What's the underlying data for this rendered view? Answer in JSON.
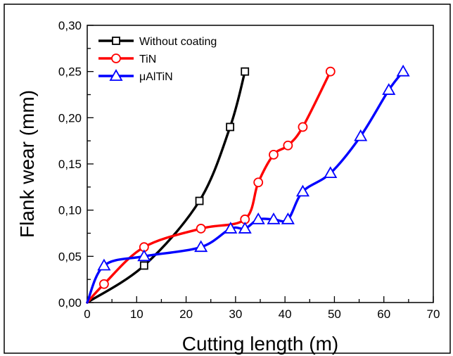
{
  "chart_data": {
    "type": "line",
    "title": "",
    "xlabel": "Cutting length (m)",
    "ylabel": "Flank wear (mm)",
    "xlim": [
      0,
      70
    ],
    "ylim": [
      0.0,
      0.3
    ],
    "x_ticks": [
      "0",
      "10",
      "20",
      "30",
      "40",
      "50",
      "60",
      "70"
    ],
    "y_ticks": [
      "0,00",
      "0,05",
      "0,10",
      "0,15",
      "0,20",
      "0,25",
      "0,30"
    ],
    "grid": false,
    "legend_position": "top-left",
    "series": [
      {
        "name": "Without coating",
        "color": "#000000",
        "marker": "square",
        "x": [
          0,
          11.5,
          22.7,
          28.9,
          31.9
        ],
        "y": [
          0.0,
          0.04,
          0.11,
          0.19,
          0.25
        ]
      },
      {
        "name": "TiN",
        "color": "#ff0000",
        "marker": "circle",
        "x": [
          0,
          3.4,
          11.5,
          23.0,
          31.9,
          34.6,
          37.7,
          40.6,
          43.6,
          49.2
        ],
        "y": [
          0.0,
          0.02,
          0.06,
          0.08,
          0.09,
          0.13,
          0.16,
          0.17,
          0.19,
          0.25
        ]
      },
      {
        "name": "μAlTiN",
        "color": "#0000ff",
        "marker": "triangle",
        "x": [
          0,
          3.4,
          11.5,
          23.0,
          29.0,
          31.9,
          34.6,
          37.7,
          40.6,
          43.6,
          49.2,
          55.3,
          61.0,
          63.9
        ],
        "y": [
          0.0,
          0.04,
          0.05,
          0.06,
          0.08,
          0.08,
          0.09,
          0.09,
          0.09,
          0.12,
          0.14,
          0.18,
          0.23,
          0.25
        ]
      }
    ]
  }
}
